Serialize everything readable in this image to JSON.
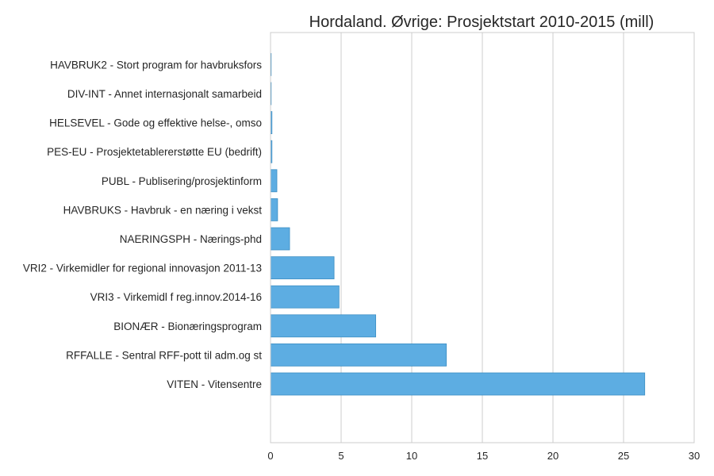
{
  "chart_data": {
    "type": "bar",
    "orientation": "horizontal",
    "title": "Hordaland. Øvrige: Prosjektstart 2010-2015 (mill)",
    "xlabel": "",
    "ylabel": "",
    "categories": [
      "VITEN - Vitensentre",
      "RFFALLE - Sentral RFF-pott til adm.og st",
      "BIONÆR - Bionæringsprogram",
      "VRI3 - Virkemidl f reg.innov.2014-16",
      "VRI2 - Virkemidler for regional innovasjon 2011-13",
      "NAERINGSPH - Nærings-phd",
      "HAVBRUKS - Havbruk - en næring i vekst",
      "PUBL - Publisering/prosjektinform",
      "PES-EU - Prosjektetablererstøtte EU (bedrift)",
      "HELSEVEL - Gode og effektive helse-, omso",
      "DIV-INT - Annet internasjonalt samarbeid",
      "HAVBRUK2 - Stort program for havbruksfors"
    ],
    "values": [
      26.5,
      12.45,
      7.45,
      4.85,
      4.5,
      1.35,
      0.5,
      0.45,
      0.1,
      0.1,
      0.03,
      0.02
    ],
    "xlim": [
      0,
      30
    ],
    "xticks": [
      0,
      5,
      10,
      15,
      20,
      25,
      30
    ],
    "grid": "vertical",
    "legend": "none",
    "colors": {
      "bar": "#5dade2",
      "bar_edge": "#3d8fc4",
      "grid": "#cccccc",
      "axis": "#cccccc",
      "text": "#262626"
    }
  }
}
